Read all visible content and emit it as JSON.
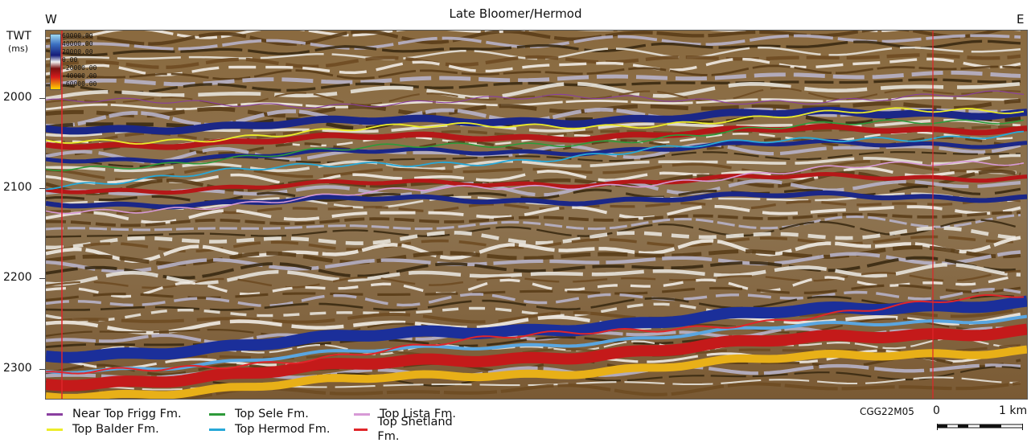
{
  "title": "Late Bloomer/Hermod",
  "direction_left": "W",
  "direction_right": "E",
  "y_axis": {
    "label": "TWT",
    "unit": "(ms)",
    "ticks": [
      "2000",
      "2100",
      "2200",
      "2300"
    ]
  },
  "colorbar": {
    "labels": [
      "60000.00",
      "40000.00",
      "20000.00",
      "0.00",
      "-20000.00",
      "-40000.00",
      "-60000.00"
    ]
  },
  "horizons": [
    {
      "name": "Near Top Frigg Fm.",
      "color": "#8a3fa0"
    },
    {
      "name": "Top Sele Fm.",
      "color": "#2e9a3a"
    },
    {
      "name": "Top Lista Fm.",
      "color": "#d79ad6"
    },
    {
      "name": "Top Balder Fm.",
      "color": "#ecec2a"
    },
    {
      "name": "Top Hermod Fm.",
      "color": "#27a8d8"
    },
    {
      "name": "Top Shetland Fm.",
      "color": "#e0262a"
    }
  ],
  "line_code": "CGG22M05",
  "scale_bar": {
    "start": "0",
    "end": "1 km"
  }
}
